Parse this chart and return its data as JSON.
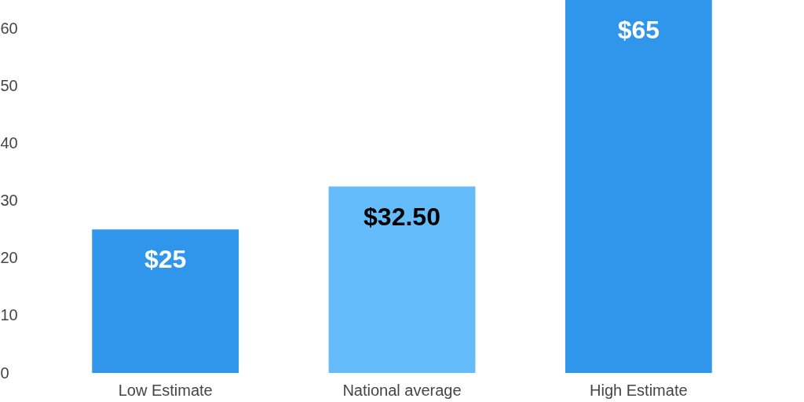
{
  "chart_data": {
    "type": "bar",
    "categories": [
      "Low Estimate",
      "National average",
      "High Estimate"
    ],
    "values": [
      25,
      32.5,
      65
    ],
    "colors": [
      "#3096ec",
      "#64bcfb",
      "#3096ec"
    ],
    "value_labels": [
      "$25",
      "$32.50",
      "$65"
    ],
    "ylim": [
      0,
      65
    ],
    "yticks": [
      0,
      10,
      20,
      30,
      40,
      50,
      60
    ],
    "grid": false
  }
}
